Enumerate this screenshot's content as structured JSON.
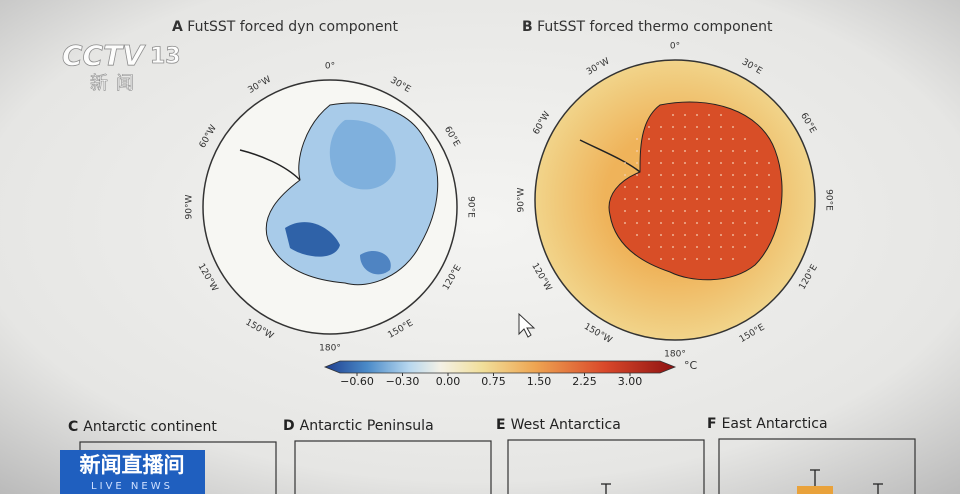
{
  "broadcast": {
    "channel_logo": "CCTV",
    "channel_number": "13",
    "channel_name": "新闻",
    "program": "新闻直播间",
    "program_subtitle": "LIVE NEWS"
  },
  "figure": {
    "panels": [
      {
        "letter": "A",
        "title": "FutSST forced dyn component"
      },
      {
        "letter": "B",
        "title": "FutSST forced thermo component"
      }
    ],
    "longitude_labels": [
      "0°",
      "30°E",
      "60°E",
      "90°E",
      "120°E",
      "150°E",
      "180°",
      "150°W",
      "120°W",
      "90°W",
      "60°W",
      "30°W"
    ],
    "colorbar": {
      "ticks": [
        {
          "value": -0.6,
          "label": "−0.60"
        },
        {
          "value": -0.3,
          "label": "−0.30"
        },
        {
          "value": 0,
          "label": "0.00"
        },
        {
          "value": 0.75,
          "label": "0.75"
        },
        {
          "value": 1.5,
          "label": "1.50"
        },
        {
          "value": 2.25,
          "label": "2.25"
        },
        {
          "value": 3,
          "label": "3.00"
        }
      ],
      "unit": "°C"
    },
    "lower_panels": [
      {
        "letter": "C",
        "title": "Antarctic continent"
      },
      {
        "letter": "D",
        "title": "Antarctic Peninsula"
      },
      {
        "letter": "E",
        "title": "West Antarctica"
      },
      {
        "letter": "F",
        "title": "East Antarctica"
      }
    ]
  }
}
